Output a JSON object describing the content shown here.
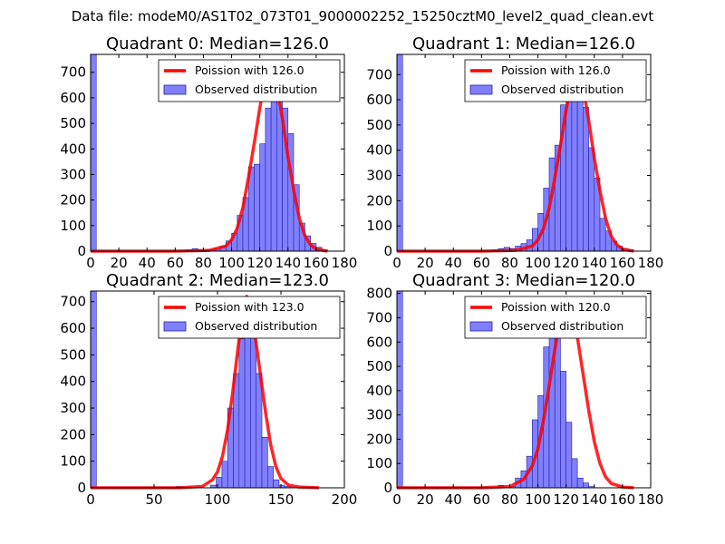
{
  "figure": {
    "suptitle": "Data file: modeM0/AS1T02_073T01_9000002252_15250cztM0_level2_quad_clean.evt"
  },
  "colors": {
    "bar_fill": "#8080ff",
    "bar_edge": "#2020a0",
    "line": "#ff0000",
    "axes": "#000000"
  },
  "chart_data": [
    {
      "type": "bar",
      "title": "Quadrant 0: Median=126.0",
      "xlim": [
        0,
        180
      ],
      "ylim": [
        0,
        770
      ],
      "xticks": [
        "0",
        "20",
        "40",
        "60",
        "80",
        "100",
        "120",
        "140",
        "160",
        "180"
      ],
      "yticks": [
        "0",
        "100",
        "200",
        "300",
        "400",
        "500",
        "600",
        "700"
      ],
      "legend": [
        "Poission with 126.0",
        "Observed distribution"
      ],
      "legend_position": "top-right",
      "histogram": {
        "bin_start": 0,
        "bin_width": 4,
        "counts": [
          770,
          0,
          0,
          0,
          0,
          0,
          0,
          0,
          0,
          0,
          0,
          0,
          0,
          0,
          0,
          0,
          0,
          5,
          10,
          5,
          5,
          5,
          10,
          20,
          40,
          70,
          140,
          210,
          330,
          340,
          420,
          560,
          680,
          620,
          560,
          460,
          260,
          110,
          60,
          30,
          15,
          5,
          0,
          0,
          0
        ]
      },
      "poisson": {
        "mean": 126.0,
        "x": [
          0,
          60,
          84,
          96,
          100,
          104,
          108,
          112,
          116,
          120,
          124,
          126,
          128,
          132,
          136,
          140,
          144,
          148,
          152,
          156,
          160,
          168
        ],
        "y": [
          0,
          0,
          3,
          20,
          45,
          90,
          170,
          290,
          420,
          560,
          680,
          730,
          720,
          650,
          520,
          370,
          240,
          130,
          60,
          25,
          8,
          0
        ]
      }
    },
    {
      "type": "bar",
      "title": "Quadrant 1: Median=126.0",
      "xlim": [
        0,
        180
      ],
      "ylim": [
        0,
        780
      ],
      "xticks": [
        "0",
        "20",
        "40",
        "60",
        "80",
        "100",
        "120",
        "140",
        "160",
        "180"
      ],
      "yticks": [
        "0",
        "100",
        "200",
        "300",
        "400",
        "500",
        "600",
        "700"
      ],
      "legend": [
        "Poission with 126.0",
        "Observed distribution"
      ],
      "legend_position": "top-right",
      "histogram": {
        "bin_start": 0,
        "bin_width": 4,
        "counts": [
          780,
          0,
          0,
          0,
          0,
          0,
          0,
          0,
          0,
          0,
          0,
          0,
          0,
          0,
          0,
          0,
          0,
          5,
          10,
          15,
          10,
          20,
          30,
          45,
          90,
          150,
          250,
          370,
          420,
          580,
          650,
          650,
          700,
          570,
          410,
          290,
          130,
          80,
          40,
          20,
          10,
          5,
          0,
          0,
          0
        ]
      },
      "poisson": {
        "mean": 126.0,
        "x": [
          0,
          60,
          84,
          96,
          100,
          104,
          108,
          112,
          116,
          120,
          124,
          126,
          128,
          132,
          136,
          140,
          144,
          148,
          152,
          156,
          160,
          168
        ],
        "y": [
          0,
          0,
          3,
          20,
          45,
          90,
          170,
          290,
          420,
          560,
          680,
          730,
          720,
          650,
          520,
          370,
          240,
          130,
          60,
          25,
          8,
          0
        ]
      }
    },
    {
      "type": "bar",
      "title": "Quadrant 2: Median=123.0",
      "xlim": [
        0,
        200
      ],
      "ylim": [
        0,
        740
      ],
      "xticks": [
        "0",
        "50",
        "100",
        "150",
        "200"
      ],
      "yticks": [
        "0",
        "100",
        "200",
        "300",
        "400",
        "500",
        "600",
        "700"
      ],
      "legend": [
        "Poission with 123.0",
        "Observed distribution"
      ],
      "legend_position": "top-right",
      "histogram": {
        "bin_start": 0,
        "bin_width": 4.5,
        "counts": [
          740,
          0,
          0,
          0,
          0,
          0,
          0,
          0,
          0,
          0,
          0,
          0,
          0,
          0,
          0,
          5,
          0,
          0,
          0,
          0,
          0,
          10,
          40,
          100,
          300,
          430,
          560,
          690,
          580,
          430,
          190,
          80,
          30,
          10,
          5,
          0,
          0,
          0,
          0,
          0
        ]
      },
      "poisson": {
        "mean": 123.0,
        "x": [
          0,
          70,
          88,
          96,
          100,
          104,
          108,
          112,
          116,
          120,
          123,
          126,
          130,
          134,
          138,
          142,
          146,
          150,
          156,
          164,
          180
        ],
        "y": [
          0,
          0,
          5,
          30,
          60,
          120,
          220,
          360,
          520,
          660,
          720,
          680,
          560,
          420,
          280,
          160,
          80,
          35,
          10,
          3,
          0
        ]
      }
    },
    {
      "type": "bar",
      "title": "Quadrant 3: Median=120.0",
      "xlim": [
        0,
        180
      ],
      "ylim": [
        0,
        810
      ],
      "xticks": [
        "0",
        "20",
        "40",
        "60",
        "80",
        "100",
        "120",
        "140",
        "160",
        "180"
      ],
      "yticks": [
        "0",
        "100",
        "200",
        "300",
        "400",
        "500",
        "600",
        "700",
        "800"
      ],
      "legend": [
        "Poission with 120.0",
        "Observed distribution"
      ],
      "legend_position": "top-right",
      "histogram": {
        "bin_start": 0,
        "bin_width": 4,
        "counts": [
          810,
          0,
          0,
          0,
          0,
          0,
          0,
          0,
          0,
          0,
          0,
          0,
          0,
          0,
          0,
          0,
          0,
          0,
          10,
          0,
          5,
          40,
          70,
          130,
          280,
          380,
          580,
          640,
          730,
          480,
          270,
          120,
          40,
          20,
          5,
          0,
          0,
          0,
          0,
          0,
          0,
          0,
          0,
          0,
          0
        ]
      },
      "poisson": {
        "mean": 120.0,
        "x": [
          0,
          60,
          80,
          90,
          96,
          100,
          104,
          108,
          112,
          116,
          120,
          124,
          128,
          132,
          136,
          140,
          144,
          148,
          152,
          160,
          168
        ],
        "y": [
          0,
          0,
          5,
          35,
          90,
          160,
          280,
          420,
          570,
          700,
          780,
          740,
          620,
          470,
          320,
          190,
          100,
          45,
          18,
          3,
          0
        ]
      }
    }
  ]
}
